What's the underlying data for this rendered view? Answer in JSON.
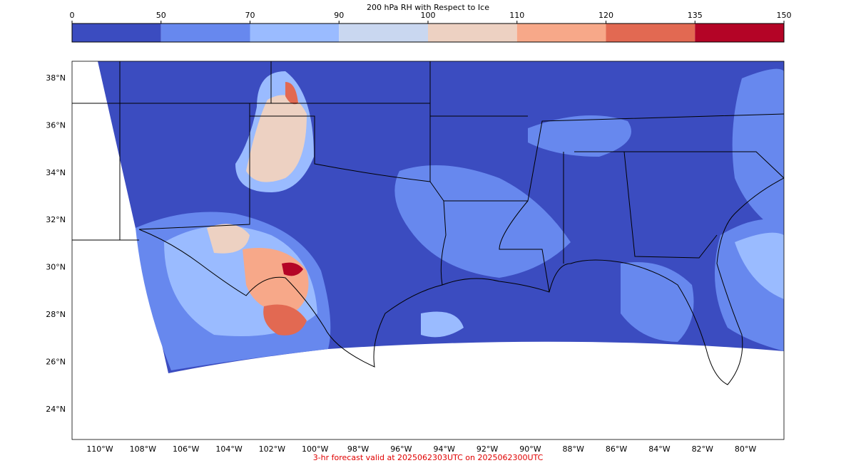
{
  "colorbar": {
    "title": "200 hPa RH with Respect to Ice",
    "bounds": [
      0,
      50,
      70,
      90,
      100,
      110,
      120,
      135,
      150
    ],
    "colors": [
      "#3b4cc0",
      "#6788ee",
      "#9abbff",
      "#c9d7f0",
      "#edd1c2",
      "#f7a889",
      "#e26952",
      "#b40426"
    ]
  },
  "map": {
    "lat_ticks": [
      {
        "value": 38,
        "label": "38°N"
      },
      {
        "value": 36,
        "label": "36°N"
      },
      {
        "value": 34,
        "label": "34°N"
      },
      {
        "value": 32,
        "label": "32°N"
      },
      {
        "value": 30,
        "label": "30°N"
      },
      {
        "value": 28,
        "label": "28°N"
      },
      {
        "value": 26,
        "label": "26°N"
      },
      {
        "value": 24,
        "label": "24°N"
      }
    ],
    "lon_ticks": [
      {
        "value": -110,
        "label": "110°W"
      },
      {
        "value": -108,
        "label": "108°W"
      },
      {
        "value": -106,
        "label": "106°W"
      },
      {
        "value": -104,
        "label": "104°W"
      },
      {
        "value": -102,
        "label": "102°W"
      },
      {
        "value": -100,
        "label": "100°W"
      },
      {
        "value": -98,
        "label": "98°W"
      },
      {
        "value": -96,
        "label": "96°W"
      },
      {
        "value": -94,
        "label": "94°W"
      },
      {
        "value": -92,
        "label": "92°W"
      },
      {
        "value": -90,
        "label": "90°W"
      },
      {
        "value": -88,
        "label": "88°W"
      },
      {
        "value": -86,
        "label": "86°W"
      },
      {
        "value": -84,
        "label": "84°W"
      },
      {
        "value": -82,
        "label": "82°W"
      },
      {
        "value": -80,
        "label": "80°W"
      }
    ]
  },
  "footer": "3-hr forecast valid at 2025062303UTC on 2025062300UTC"
}
